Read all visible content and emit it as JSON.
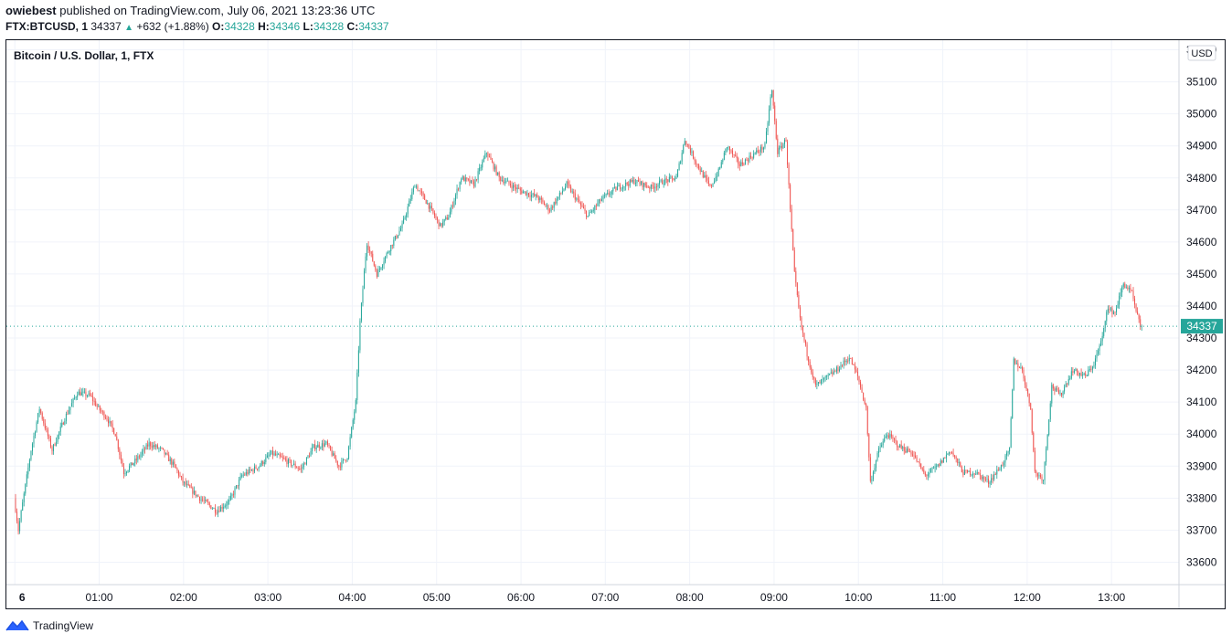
{
  "header": {
    "author": "owiebest",
    "published_text": "published on TradingView.com, July 06, 2021 13:23:36 UTC"
  },
  "ohlc": {
    "symbol": "FTX:BTCUSD, 1",
    "last": "34337",
    "change": "+632 (+1.88%)",
    "o_label": "O:",
    "o": "34328",
    "h_label": "H:",
    "h": "34346",
    "l_label": "L:",
    "l": "34328",
    "c_label": "C:",
    "c": "34337"
  },
  "footer": {
    "brand": "TradingView"
  },
  "colors": {
    "up": "#26a69a",
    "down": "#ef5350",
    "grid": "#f0f3fa",
    "text": "#131722"
  },
  "chart_data": {
    "type": "candlestick",
    "title": "Bitcoin / U.S. Dollar, 1, FTX",
    "currency_label": "USD",
    "last_price_label": "34337",
    "last_price": 34337,
    "ylim": [
      33530,
      35230
    ],
    "y_ticks": [
      33600,
      33700,
      33800,
      33900,
      34000,
      34100,
      34200,
      34300,
      34400,
      34500,
      34600,
      34700,
      34800,
      34900,
      35000,
      35100,
      35200
    ],
    "x_range_hours": [
      -0.1,
      13.8
    ],
    "x_ticks": [
      {
        "h": 0,
        "label": "6"
      },
      {
        "h": 1,
        "label": "01:00"
      },
      {
        "h": 2,
        "label": "02:00"
      },
      {
        "h": 3,
        "label": "03:00"
      },
      {
        "h": 4,
        "label": "04:00"
      },
      {
        "h": 5,
        "label": "05:00"
      },
      {
        "h": 6,
        "label": "06:00"
      },
      {
        "h": 7,
        "label": "07:00"
      },
      {
        "h": 8,
        "label": "08:00"
      },
      {
        "h": 9,
        "label": "09:00"
      },
      {
        "h": 10,
        "label": "10:00"
      },
      {
        "h": 11,
        "label": "11:00"
      },
      {
        "h": 12,
        "label": "12:00"
      },
      {
        "h": 13,
        "label": "13:00"
      }
    ],
    "candle_interval_minutes": 1,
    "price_path": [
      [
        0.0,
        33800
      ],
      [
        0.05,
        33700
      ],
      [
        0.2,
        33950
      ],
      [
        0.3,
        34080
      ],
      [
        0.45,
        33950
      ],
      [
        0.6,
        34050
      ],
      [
        0.75,
        34130
      ],
      [
        0.9,
        34120
      ],
      [
        1.0,
        34080
      ],
      [
        1.1,
        34050
      ],
      [
        1.2,
        34000
      ],
      [
        1.3,
        33880
      ],
      [
        1.45,
        33920
      ],
      [
        1.6,
        33970
      ],
      [
        1.75,
        33950
      ],
      [
        1.9,
        33900
      ],
      [
        2.0,
        33850
      ],
      [
        2.2,
        33800
      ],
      [
        2.4,
        33760
      ],
      [
        2.55,
        33790
      ],
      [
        2.7,
        33870
      ],
      [
        2.9,
        33900
      ],
      [
        3.05,
        33940
      ],
      [
        3.2,
        33920
      ],
      [
        3.4,
        33890
      ],
      [
        3.55,
        33960
      ],
      [
        3.7,
        33970
      ],
      [
        3.85,
        33900
      ],
      [
        3.95,
        33930
      ],
      [
        4.05,
        34100
      ],
      [
        4.1,
        34350
      ],
      [
        4.18,
        34600
      ],
      [
        4.3,
        34500
      ],
      [
        4.45,
        34580
      ],
      [
        4.6,
        34650
      ],
      [
        4.75,
        34780
      ],
      [
        4.9,
        34720
      ],
      [
        5.05,
        34650
      ],
      [
        5.15,
        34680
      ],
      [
        5.3,
        34800
      ],
      [
        5.45,
        34780
      ],
      [
        5.6,
        34880
      ],
      [
        5.75,
        34800
      ],
      [
        6.0,
        34760
      ],
      [
        6.2,
        34740
      ],
      [
        6.35,
        34700
      ],
      [
        6.55,
        34780
      ],
      [
        6.7,
        34720
      ],
      [
        6.8,
        34680
      ],
      [
        6.95,
        34730
      ],
      [
        7.15,
        34770
      ],
      [
        7.35,
        34790
      ],
      [
        7.55,
        34770
      ],
      [
        7.7,
        34790
      ],
      [
        7.85,
        34800
      ],
      [
        7.95,
        34920
      ],
      [
        8.1,
        34840
      ],
      [
        8.25,
        34770
      ],
      [
        8.35,
        34820
      ],
      [
        8.45,
        34900
      ],
      [
        8.6,
        34840
      ],
      [
        8.75,
        34870
      ],
      [
        8.9,
        34900
      ],
      [
        8.98,
        35080
      ],
      [
        9.05,
        34880
      ],
      [
        9.15,
        34920
      ],
      [
        9.2,
        34700
      ],
      [
        9.25,
        34500
      ],
      [
        9.32,
        34350
      ],
      [
        9.4,
        34250
      ],
      [
        9.5,
        34150
      ],
      [
        9.6,
        34170
      ],
      [
        9.75,
        34200
      ],
      [
        9.9,
        34240
      ],
      [
        10.0,
        34180
      ],
      [
        10.1,
        34080
      ],
      [
        10.15,
        33850
      ],
      [
        10.25,
        33950
      ],
      [
        10.35,
        34000
      ],
      [
        10.5,
        33960
      ],
      [
        10.65,
        33940
      ],
      [
        10.8,
        33870
      ],
      [
        10.95,
        33900
      ],
      [
        11.1,
        33950
      ],
      [
        11.25,
        33880
      ],
      [
        11.4,
        33880
      ],
      [
        11.55,
        33850
      ],
      [
        11.7,
        33900
      ],
      [
        11.8,
        33950
      ],
      [
        11.85,
        34230
      ],
      [
        11.95,
        34200
      ],
      [
        12.05,
        34080
      ],
      [
        12.1,
        33880
      ],
      [
        12.2,
        33860
      ],
      [
        12.3,
        34150
      ],
      [
        12.4,
        34120
      ],
      [
        12.55,
        34200
      ],
      [
        12.7,
        34180
      ],
      [
        12.8,
        34220
      ],
      [
        12.9,
        34300
      ],
      [
        12.95,
        34390
      ],
      [
        13.05,
        34380
      ],
      [
        13.15,
        34470
      ],
      [
        13.25,
        34440
      ],
      [
        13.3,
        34380
      ],
      [
        13.35,
        34337
      ]
    ]
  }
}
